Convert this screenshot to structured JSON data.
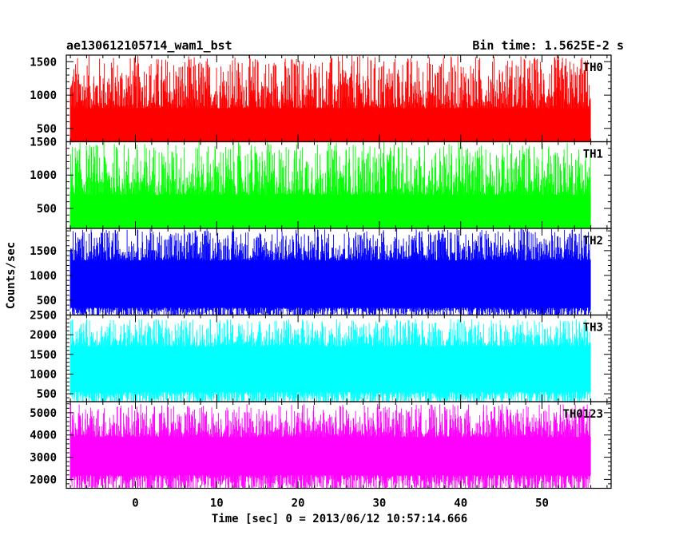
{
  "header": {
    "title": "ae130612105714_wam1_bst",
    "bin_time": "Bin time: 1.5625E-2 s"
  },
  "chart_data": {
    "type": "line",
    "xlabel": "Time [sec] 0 = 2013/06/12 10:57:14.666",
    "ylabel": "Counts/sec",
    "xlim": [
      -8.5,
      58.5
    ],
    "x_range_data": [
      -8,
      56
    ],
    "x_ticks": [
      0,
      10,
      20,
      30,
      40,
      50
    ],
    "x_minor_step": 2,
    "panels": [
      {
        "name": "TH0",
        "color": "#ff0000",
        "ylim": [
          300,
          1600
        ],
        "y_ticks": [
          500,
          1000,
          1500
        ],
        "band_low": [
          60,
          200
        ],
        "band_high": [
          800,
          1600
        ],
        "core": [
          200,
          800
        ],
        "y_minor_step": 100
      },
      {
        "name": "TH1",
        "color": "#00ff00",
        "ylim": [
          200,
          1500
        ],
        "y_ticks": [
          500,
          1000,
          1500
        ],
        "band_low": [
          60,
          180
        ],
        "band_high": [
          700,
          1500
        ],
        "core": [
          180,
          700
        ],
        "y_minor_step": 100
      },
      {
        "name": "TH2",
        "color": "#0000ff",
        "ylim": [
          200,
          1950
        ],
        "y_ticks": [
          500,
          1000,
          1500
        ],
        "band_low": [
          100,
          350
        ],
        "band_high": [
          1300,
          1950
        ],
        "core": [
          350,
          1300
        ],
        "y_minor_step": 100
      },
      {
        "name": "TH3",
        "color": "#00ffff",
        "ylim": [
          300,
          2500
        ],
        "y_ticks": [
          500,
          1000,
          1500,
          2000,
          2500
        ],
        "band_low": [
          150,
          550
        ],
        "band_high": [
          1700,
          2400
        ],
        "core": [
          550,
          1700
        ],
        "y_minor_step": 100
      },
      {
        "name": "TH0123",
        "color": "#ff00ff",
        "ylim": [
          1600,
          5500
        ],
        "y_ticks": [
          2000,
          3000,
          4000,
          5000
        ],
        "band_low": [
          1200,
          2200
        ],
        "band_high": [
          3900,
          5400
        ],
        "core": [
          2200,
          3900
        ],
        "y_minor_step": 200
      }
    ]
  }
}
